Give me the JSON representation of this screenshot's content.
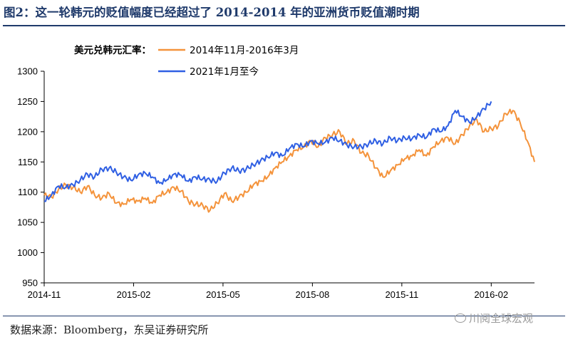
{
  "header": {
    "title": "图2：这一轮韩元的贬值幅度已经超过了 2014-2014 年的亚洲货币贬值潮时期"
  },
  "footer": {
    "source": "数据来源：Bloomberg，东吴证券研究所",
    "watermark": "川阅全球宏观"
  },
  "chart_data": {
    "type": "line",
    "title": "",
    "legend_title": "美元兑韩元汇率：",
    "legend_position": "top",
    "xlabel": "",
    "ylabel": "",
    "ylim": [
      950,
      1300
    ],
    "yticks": [
      950,
      1000,
      1050,
      1100,
      1150,
      1200,
      1250,
      1300
    ],
    "xticks": [
      "2014-11",
      "2015-02",
      "2015-05",
      "2015-08",
      "2015-11",
      "2016-02"
    ],
    "x_unit": "trading-day",
    "x_domain": [
      0,
      340
    ],
    "xtick_positions": [
      0,
      62,
      124,
      186,
      248,
      310
    ],
    "grid": false,
    "series": [
      {
        "name": "2014年11月-2016年3月",
        "color": "#f4933b",
        "x": [
          0,
          5,
          10,
          15,
          20,
          25,
          30,
          35,
          40,
          45,
          50,
          55,
          60,
          65,
          70,
          75,
          80,
          85,
          90,
          95,
          100,
          105,
          110,
          115,
          120,
          125,
          130,
          135,
          140,
          145,
          150,
          155,
          160,
          165,
          170,
          175,
          180,
          185,
          190,
          195,
          200,
          205,
          210,
          215,
          220,
          225,
          230,
          235,
          240,
          245,
          250,
          255,
          260,
          265,
          270,
          275,
          280,
          285,
          290,
          295,
          300,
          305,
          310,
          315,
          320,
          325,
          330,
          335,
          340
        ],
        "values": [
          1095,
          1092,
          1105,
          1112,
          1108,
          1100,
          1110,
          1095,
          1090,
          1098,
          1082,
          1080,
          1088,
          1085,
          1090,
          1082,
          1095,
          1100,
          1108,
          1102,
          1085,
          1080,
          1078,
          1070,
          1082,
          1098,
          1085,
          1092,
          1100,
          1112,
          1118,
          1125,
          1140,
          1150,
          1160,
          1170,
          1175,
          1185,
          1175,
          1190,
          1195,
          1200,
          1180,
          1185,
          1165,
          1160,
          1140,
          1125,
          1135,
          1145,
          1155,
          1160,
          1170,
          1160,
          1175,
          1185,
          1190,
          1180,
          1195,
          1210,
          1220,
          1200,
          1205,
          1210,
          1230,
          1235,
          1215,
          1185,
          1150
        ]
      },
      {
        "name": "2021年1月至今",
        "color": "#2f5fe3",
        "x": [
          0,
          5,
          10,
          15,
          20,
          25,
          30,
          35,
          40,
          45,
          50,
          55,
          60,
          65,
          70,
          75,
          80,
          85,
          90,
          95,
          100,
          105,
          110,
          115,
          120,
          125,
          130,
          135,
          140,
          145,
          150,
          155,
          160,
          165,
          170,
          175,
          180,
          185,
          190,
          195,
          200,
          205,
          210,
          215,
          220,
          225,
          230,
          235,
          240,
          245,
          250,
          255,
          260,
          265,
          270,
          275,
          280,
          285,
          290,
          295,
          300,
          305,
          310
        ],
        "values": [
          1085,
          1095,
          1110,
          1108,
          1112,
          1120,
          1130,
          1125,
          1138,
          1140,
          1133,
          1125,
          1120,
          1128,
          1132,
          1125,
          1115,
          1120,
          1130,
          1128,
          1118,
          1125,
          1122,
          1120,
          1118,
          1132,
          1140,
          1135,
          1138,
          1145,
          1152,
          1158,
          1165,
          1160,
          1172,
          1180,
          1175,
          1185,
          1180,
          1183,
          1190,
          1185,
          1178,
          1175,
          1175,
          1180,
          1185,
          1180,
          1190,
          1185,
          1190,
          1188,
          1195,
          1190,
          1205,
          1200,
          1210,
          1235,
          1225,
          1215,
          1225,
          1238,
          1250
        ]
      }
    ]
  }
}
